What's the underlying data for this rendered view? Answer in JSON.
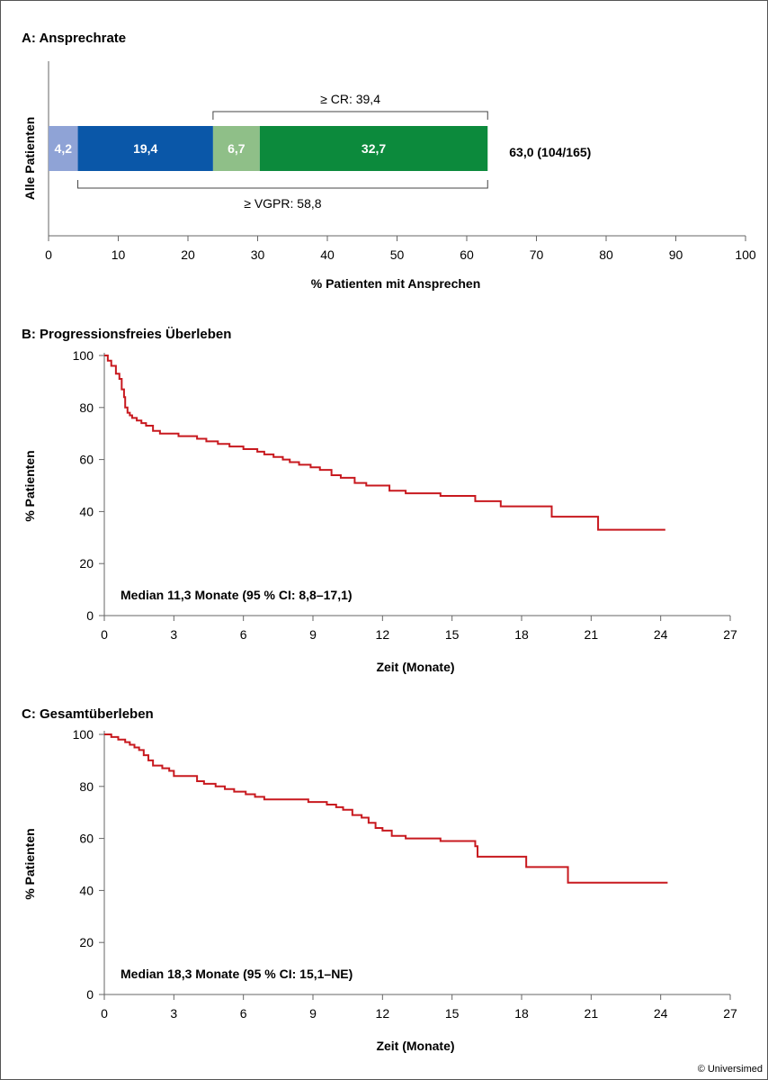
{
  "chart_data": [
    {
      "type": "bar",
      "panel_title": "A: Ansprechrate",
      "orientation": "horizontal",
      "stacked": true,
      "categories": [
        "Alle Patienten"
      ],
      "series": [
        {
          "values": [
            4.2
          ],
          "label": "4,2",
          "color": "#8fa3d6"
        },
        {
          "values": [
            19.4
          ],
          "label": "19,4",
          "color": "#0a57a8"
        },
        {
          "values": [
            6.7
          ],
          "label": "6,7",
          "color": "#8fbf88"
        },
        {
          "values": [
            32.7
          ],
          "label": "32,7",
          "color": "#0c8a3c"
        }
      ],
      "total_label": "63,0 (104/165)",
      "bracket_top": {
        "label": "≥ CR: 39,4",
        "from": 23.6,
        "to": 63.0
      },
      "bracket_bottom": {
        "label": "≥ VGPR: 58,8",
        "from": 4.2,
        "to": 63.0
      },
      "xlabel": "% Patienten mit Ansprechen",
      "ylabel": "Alle Patienten",
      "xlim": [
        0,
        100
      ],
      "xticks": [
        0,
        10,
        20,
        30,
        40,
        50,
        60,
        70,
        80,
        90,
        100
      ]
    },
    {
      "type": "line",
      "step": true,
      "panel_title": "B: Progressionsfreies Überleben",
      "xlabel": "Zeit (Monate)",
      "ylabel": "% Patienten",
      "xlim": [
        0,
        27
      ],
      "ylim": [
        0,
        100
      ],
      "xticks": [
        0,
        3,
        6,
        9,
        12,
        15,
        18,
        21,
        24,
        27
      ],
      "yticks": [
        0,
        20,
        40,
        60,
        80,
        100
      ],
      "annotation": "Median 11,3 Monate (95 % CI: 8,8–17,1)",
      "color": "#c8191f",
      "x": [
        0,
        0.15,
        0.3,
        0.5,
        0.65,
        0.75,
        0.85,
        0.9,
        1.0,
        1.1,
        1.2,
        1.4,
        1.6,
        1.8,
        2.1,
        2.4,
        2.6,
        2.8,
        3.2,
        4.0,
        4.4,
        4.9,
        5.4,
        6.0,
        6.6,
        6.9,
        7.3,
        7.7,
        8.0,
        8.4,
        8.9,
        9.3,
        9.8,
        10.2,
        10.8,
        11.3,
        12.3,
        13.0,
        14.5,
        16.0,
        17.1,
        19.3,
        21.3,
        24.2
      ],
      "y": [
        100,
        98,
        96,
        93,
        91,
        87,
        84,
        80,
        78,
        77,
        76,
        75,
        74,
        73,
        71,
        70,
        70,
        70,
        69,
        68,
        67,
        66,
        65,
        64,
        63,
        62,
        61,
        60,
        59,
        58,
        57,
        56,
        54,
        53,
        51,
        50,
        48,
        47,
        46,
        44,
        42,
        38,
        33,
        33
      ]
    },
    {
      "type": "line",
      "step": true,
      "panel_title": "C: Gesamtüberleben",
      "xlabel": "Zeit (Monate)",
      "ylabel": "% Patienten",
      "xlim": [
        0,
        27
      ],
      "ylim": [
        0,
        100
      ],
      "xticks": [
        0,
        3,
        6,
        9,
        12,
        15,
        18,
        21,
        24,
        27
      ],
      "yticks": [
        0,
        20,
        40,
        60,
        80,
        100
      ],
      "annotation": "Median 18,3 Monate (95 % CI: 15,1–NE)",
      "color": "#c8191f",
      "x": [
        0,
        0.3,
        0.6,
        0.9,
        1.1,
        1.3,
        1.5,
        1.7,
        1.9,
        2.1,
        2.5,
        2.8,
        3.0,
        4.0,
        4.3,
        4.8,
        5.2,
        5.6,
        6.1,
        6.5,
        6.9,
        7.5,
        8.8,
        9.6,
        10.0,
        10.3,
        10.7,
        11.1,
        11.4,
        11.7,
        12.0,
        12.4,
        13.0,
        14.5,
        15.0,
        16.0,
        16.1,
        18.2,
        20.0,
        22.3,
        24.3
      ],
      "y": [
        100,
        99,
        98,
        97,
        96,
        95,
        94,
        92,
        90,
        88,
        87,
        86,
        84,
        82,
        81,
        80,
        79,
        78,
        77,
        76,
        75,
        75,
        74,
        73,
        72,
        71,
        69,
        68,
        66,
        64,
        63,
        61,
        60,
        59,
        59,
        57,
        53,
        49,
        43,
        43,
        43
      ]
    }
  ],
  "copyright": "© Universimed"
}
